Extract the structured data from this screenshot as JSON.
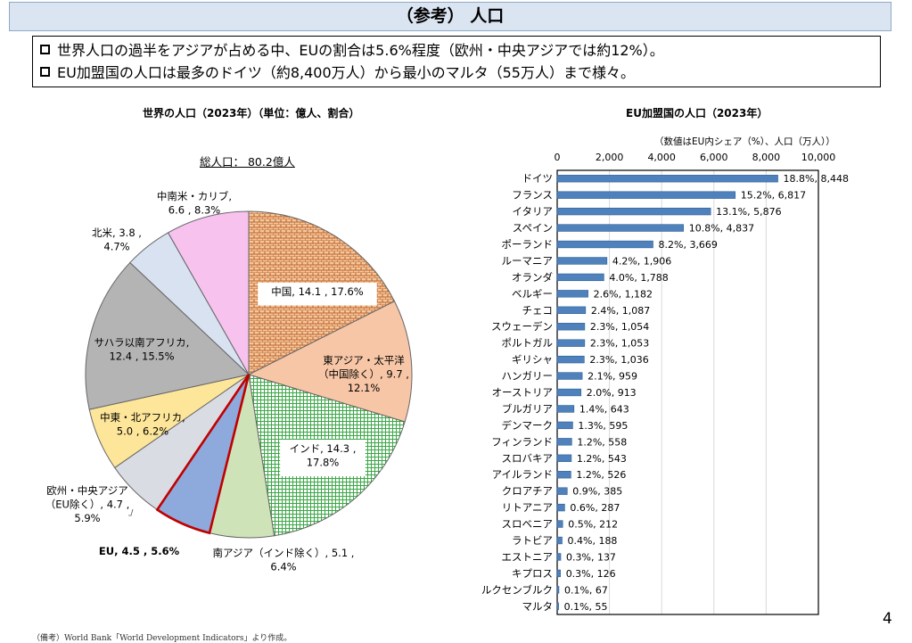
{
  "header": {
    "title": "（参考） 人口"
  },
  "summary": {
    "bullet1": "世界人口の過半をアジアが占める中、EUの割合は5.6%程度（欧州・中央アジアでは約12%）。",
    "bullet2": "EU加盟国の人口は最多のドイツ（約8,400万人）から最小のマルタ（55万人）まで様々。"
  },
  "footnote": "（備考）World Bank「World Development Indicators」より作成。",
  "page_number": "4",
  "chart_data": [
    {
      "type": "pie",
      "title": "世界の人口（2023年）（単位：億人、割合）",
      "total_label": "総人口： 80.2億人",
      "slices": [
        {
          "name": "中国",
          "value": 14.1,
          "percent": 17.6,
          "label_lines": [
            "中国, 14.1 , 17.6%"
          ],
          "color": "#d98b4a",
          "pattern": "brick",
          "boxed": true
        },
        {
          "name": "東アジア・太平洋（中国除く）",
          "value": 9.7,
          "percent": 12.1,
          "label_lines": [
            "東アジア・太平洋",
            "（中国除く）, 9.7 ,",
            "12.1%"
          ],
          "color": "#f7c6a6",
          "boxed": false
        },
        {
          "name": "インド",
          "value": 14.3,
          "percent": 17.8,
          "label_lines": [
            "インド, 14.3 ,",
            "17.8%"
          ],
          "color": "#56b556",
          "pattern": "grid",
          "boxed": true
        },
        {
          "name": "南アジア（インド除く）",
          "value": 5.1,
          "percent": 6.4,
          "label_lines": [
            "南アジア（インド除く）, 5.1 ,",
            "6.4%"
          ],
          "color": "#cfe3b9",
          "boxed": false
        },
        {
          "name": "EU",
          "value": 4.5,
          "percent": 5.6,
          "label_lines": [
            "EU, 4.5 , 5.6%"
          ],
          "color": "#8ea9dc",
          "highlight": true,
          "boxed": false
        },
        {
          "name": "欧州・中央アジア（EU除く）",
          "value": 4.7,
          "percent": 5.9,
          "label_lines": [
            "欧州・中央アジア",
            "（EU除く）, 4.7 ,",
            "5.9%"
          ],
          "color": "#d9dde3",
          "boxed": false
        },
        {
          "name": "中東・北アフリカ",
          "value": 5.0,
          "percent": 6.2,
          "label_lines": [
            "中東・北アフリカ,",
            "5.0 , 6.2%"
          ],
          "color": "#fde69a",
          "boxed": false
        },
        {
          "name": "サハラ以南アフリカ",
          "value": 12.4,
          "percent": 15.5,
          "label_lines": [
            "サハラ以南アフリカ,",
            "12.4 , 15.5%"
          ],
          "color": "#b4b4b4",
          "boxed": false
        },
        {
          "name": "北米",
          "value": 3.8,
          "percent": 4.7,
          "label_lines": [
            "北米, 3.8 ,",
            "4.7%"
          ],
          "color": "#d9e2f1",
          "boxed": false
        },
        {
          "name": "中南米・カリブ",
          "value": 6.6,
          "percent": 8.3,
          "label_lines": [
            "中南米・カリブ,",
            "6.6 , 8.3%"
          ],
          "color": "#f7c2ee",
          "boxed": false
        }
      ]
    },
    {
      "type": "bar",
      "orientation": "horizontal",
      "title": "EU加盟国の人口（2023年）",
      "value_note": "（数値はEU内シェア（%）、人口（万人））",
      "xlim": [
        0,
        10000
      ],
      "ticks": [
        0,
        2000,
        4000,
        6000,
        8000,
        10000
      ],
      "tick_labels": [
        "0",
        "2,000",
        "4,000",
        "6,000",
        "8,000",
        "10,000"
      ],
      "bar_color": "#4f81bd",
      "categories": [
        "ドイツ",
        "フランス",
        "イタリア",
        "スペイン",
        "ポーランド",
        "ルーマニア",
        "オランダ",
        "ベルギー",
        "チェコ",
        "スウェーデン",
        "ポルトガル",
        "ギリシャ",
        "ハンガリー",
        "オーストリア",
        "ブルガリア",
        "デンマーク",
        "フィンランド",
        "スロバキア",
        "アイルランド",
        "クロアチア",
        "リトアニア",
        "スロベニア",
        "ラトビア",
        "エストニア",
        "キプロス",
        "ルクセンブルク",
        "マルタ"
      ],
      "values": [
        8448,
        6817,
        5876,
        4837,
        3669,
        1906,
        1788,
        1182,
        1087,
        1054,
        1053,
        1036,
        959,
        913,
        643,
        595,
        558,
        543,
        526,
        385,
        287,
        212,
        188,
        137,
        126,
        67,
        55
      ],
      "shares": [
        18.8,
        15.2,
        13.1,
        10.8,
        8.2,
        4.2,
        4.0,
        2.6,
        2.4,
        2.3,
        2.3,
        2.3,
        2.1,
        2.0,
        1.4,
        1.3,
        1.2,
        1.2,
        1.2,
        0.9,
        0.6,
        0.5,
        0.4,
        0.3,
        0.3,
        0.1,
        0.1
      ],
      "data_labels": [
        "18.8%, 8,448",
        "15.2%, 6,817",
        "13.1%, 5,876",
        "10.8%, 4,837",
        "8.2%, 3,669",
        "4.2%, 1,906",
        "4.0%, 1,788",
        "2.6%, 1,182",
        "2.4%, 1,087",
        "2.3%, 1,054",
        "2.3%, 1,053",
        "2.3%, 1,036",
        "2.1%, 959",
        "2.0%, 913",
        "1.4%, 643",
        "1.3%, 595",
        "1.2%, 558",
        "1.2%, 543",
        "1.2%, 526",
        "0.9%, 385",
        "0.6%, 287",
        "0.5%, 212",
        "0.4%, 188",
        "0.3%, 137",
        "0.3%, 126",
        "0.1%, 67",
        "0.1%, 55"
      ]
    }
  ]
}
